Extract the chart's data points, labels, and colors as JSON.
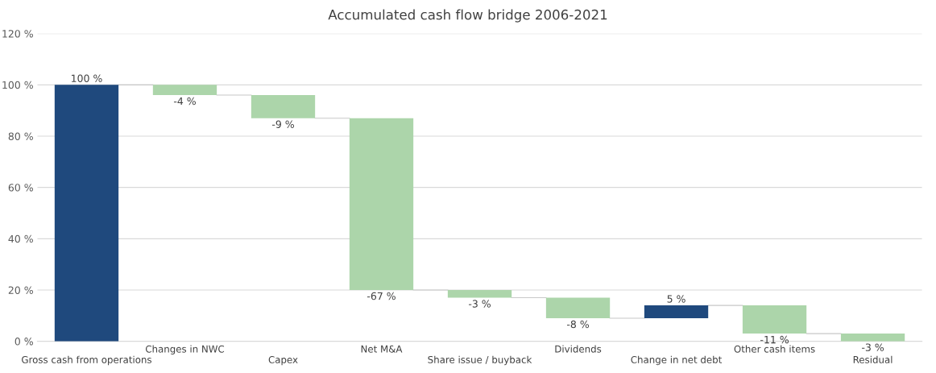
{
  "chart_data": {
    "type": "bar",
    "title": "Accumulated cash flow bridge 2006-2021",
    "categories": [
      "Gross cash from operations",
      "Changes in NWC",
      "Capex",
      "Net M&A",
      "Share issue / buyback",
      "Dividends",
      "Change in net debt",
      "Other cash items",
      "Residual"
    ],
    "values": [
      100,
      -4,
      -9,
      -67,
      -3,
      -8,
      5,
      -11,
      -3
    ],
    "base": [
      0,
      100,
      96,
      87,
      20,
      17,
      9,
      14,
      3
    ],
    "colors": [
      "#1f497d",
      "#acd5aa",
      "#acd5aa",
      "#acd5aa",
      "#acd5aa",
      "#acd5aa",
      "#1f497d",
      "#acd5aa",
      "#acd5aa"
    ],
    "value_labels": [
      "100 %",
      "-4 %",
      "-9 %",
      "-67 %",
      "-3 %",
      "-8 %",
      "5 %",
      "-11 %",
      "-3 %"
    ],
    "ylim": [
      0,
      120
    ],
    "yticks": [
      {
        "value": 0,
        "label": "0 %"
      },
      {
        "value": 20,
        "label": "20 %"
      },
      {
        "value": 40,
        "label": "40 %"
      },
      {
        "value": 60,
        "label": "60 %"
      },
      {
        "value": 80,
        "label": "80 %"
      },
      {
        "value": 100,
        "label": "100 %"
      },
      {
        "value": 120,
        "label": "120 %"
      }
    ],
    "grid": "y",
    "legend": false
  }
}
